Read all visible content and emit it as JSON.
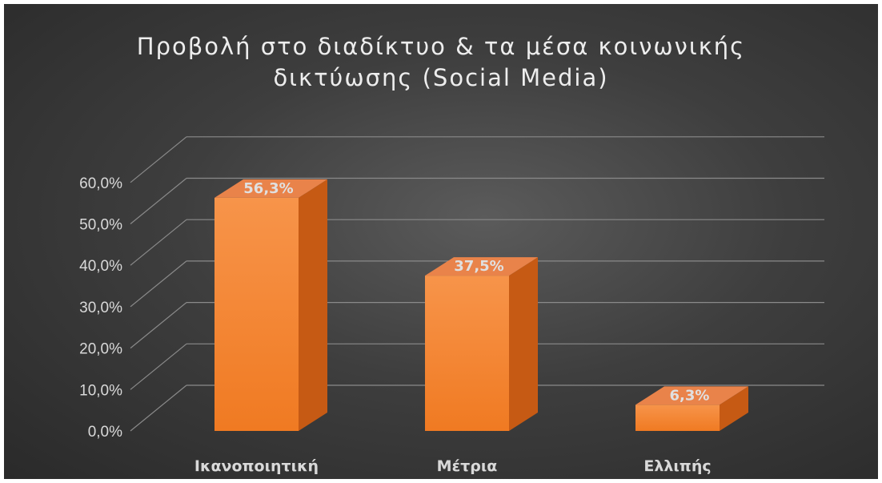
{
  "chart_data": {
    "type": "bar",
    "style": "3d-column",
    "title": "Προβολή στο διαδίκτυο & τα μέσα κοινωνικής\nδικτύωσης (Social Media)",
    "categories": [
      "Ικανοποιητική",
      "Μέτρια",
      "Ελλιπής"
    ],
    "values": [
      56.3,
      37.5,
      6.3
    ],
    "data_labels": [
      "56,3%",
      "37,5%",
      "6,3%"
    ],
    "y_ticks": [
      "0,0%",
      "10,0%",
      "20,0%",
      "30,0%",
      "40,0%",
      "50,0%",
      "60,0%"
    ],
    "ylim": [
      0,
      60
    ],
    "grid": true,
    "legend": "none",
    "colors": {
      "bar_front_top": "#f7944a",
      "bar_front_bottom": "#f07a22",
      "bar_side": "#c65a14",
      "bar_top": "#e9834a",
      "gridline": "#8a8a8a",
      "background": "#3e3e3e"
    }
  }
}
